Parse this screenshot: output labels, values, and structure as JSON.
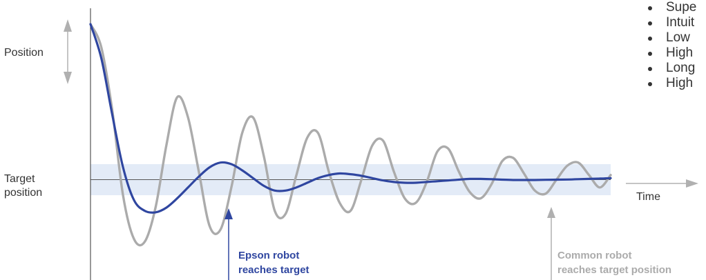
{
  "chart_data": {
    "type": "line",
    "title": "",
    "xlabel": "Time",
    "ylabel": "Position",
    "target_label": "Target position",
    "series": [
      {
        "name": "Epson robot",
        "color": "#2f46a0",
        "x": [
          0,
          0.5,
          1,
          1.5,
          2,
          2.5,
          3,
          3.5,
          4,
          4.5,
          5,
          5.5,
          6,
          6.5,
          7,
          7.5,
          8,
          8.5,
          9,
          9.5,
          10,
          10.5,
          11,
          11.5,
          12,
          12.5,
          13,
          13.5,
          14,
          14.5,
          15,
          15.5,
          16,
          16.5,
          17,
          17.5,
          18,
          18.5,
          19,
          19.5,
          20,
          20.5,
          21,
          21.5,
          22,
          22.5,
          23,
          23.5,
          24
        ],
        "y": [
          100,
          78,
          42,
          8,
          -13,
          -20,
          -21,
          -18,
          -12,
          -5,
          2,
          8,
          11,
          10,
          6,
          1,
          -4,
          -7,
          -7,
          -5,
          -2,
          1,
          3,
          4,
          3.5,
          2.5,
          1,
          -0.5,
          -1.5,
          -2,
          -2,
          -1.5,
          -1,
          -0.5,
          0,
          0.5,
          0.5,
          0.3,
          0,
          -0.2,
          -0.2,
          -0.2,
          -0.1,
          0,
          0.1,
          0.3,
          0.5,
          0.7,
          1
        ]
      },
      {
        "name": "Common robot",
        "color": "#ababab",
        "x": [
          0,
          0.5,
          1,
          1.5,
          2,
          2.5,
          3,
          3.5,
          4,
          4.5,
          5,
          5.5,
          6,
          6.5,
          7,
          7.5,
          8,
          8.5,
          9,
          9.5,
          10,
          10.5,
          11,
          11.5,
          12,
          12.5,
          13,
          13.5,
          14,
          14.5,
          15,
          15.5,
          16,
          16.5,
          17,
          17.5,
          18,
          18.5,
          19,
          19.5,
          20,
          20.5,
          21,
          21.5,
          22,
          22.5,
          23,
          23.5,
          24
        ],
        "y": [
          100,
          85,
          45,
          -10,
          -38,
          -40,
          -18,
          22,
          53,
          40,
          5,
          -30,
          -32,
          -5,
          30,
          40,
          15,
          -20,
          -22,
          3,
          27,
          30,
          5,
          -15,
          -20,
          0,
          22,
          25,
          5,
          -12,
          -15,
          -2,
          18,
          20,
          5,
          -8,
          -12,
          -3,
          12,
          14,
          4,
          -7,
          -9,
          0,
          9,
          11,
          3,
          -5,
          3
        ]
      }
    ],
    "annotations": [
      {
        "text_line1": "Epson robot",
        "text_line2": "reaches target",
        "x": 6.5,
        "color": "#2f46a0"
      },
      {
        "text_line1": "Common robot",
        "text_line2": "reaches target position",
        "x": 21,
        "color": "#ababab"
      }
    ],
    "target_band": [
      -10,
      10
    ],
    "xlim": [
      0,
      24
    ],
    "ylim": [
      -45,
      100
    ],
    "grid": false,
    "legend": "none"
  },
  "labels": {
    "position": "Position",
    "target_line1": "Target",
    "target_line2": "position",
    "time": "Time"
  },
  "bullets": [
    "Supe",
    "Intuit",
    "Low",
    "High",
    "Long",
    "High"
  ],
  "colors": {
    "band": "#e3ebf7",
    "axis": "#555555",
    "arrow": "#b0b0b0"
  }
}
